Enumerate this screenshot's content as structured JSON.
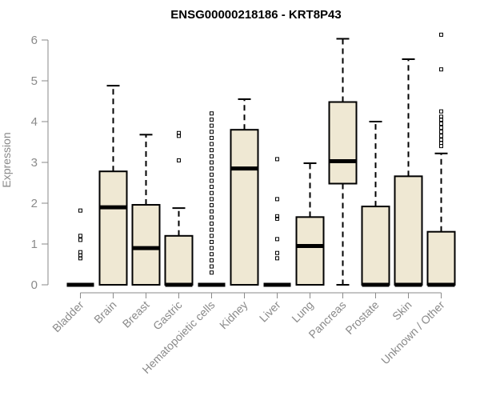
{
  "chart_data": {
    "type": "boxplot",
    "title": "ENSG00000218186 - KRT8P43",
    "xlabel": "",
    "ylabel": "Expression",
    "ylim": [
      0,
      6.2
    ],
    "yticks": [
      "0",
      "1",
      "2",
      "3",
      "4",
      "5",
      "6"
    ],
    "grid": false,
    "box_color": "#efe8d3",
    "categories": [
      "Bladder",
      "Brain",
      "Breast",
      "Gastric",
      "Hematopoietic cells",
      "Kidney",
      "Liver",
      "Lung",
      "Pancreas",
      "Prostate",
      "Skin",
      "Unknown / Other"
    ],
    "series": [
      {
        "name": "Bladder",
        "min": 0,
        "q1": 0,
        "median": 0,
        "q3": 0,
        "max": 0,
        "outliers": [
          0.65,
          0.72,
          0.8,
          1.1,
          1.2,
          1.82
        ]
      },
      {
        "name": "Brain",
        "min": 0,
        "q1": 0,
        "median": 1.9,
        "q3": 2.78,
        "max": 4.88,
        "outliers": []
      },
      {
        "name": "Breast",
        "min": 0,
        "q1": 0,
        "median": 0.9,
        "q3": 1.96,
        "max": 3.68,
        "outliers": []
      },
      {
        "name": "Gastric",
        "min": 0,
        "q1": 0,
        "median": 0,
        "q3": 1.2,
        "max": 1.88,
        "outliers": [
          3.05,
          3.65,
          3.72
        ]
      },
      {
        "name": "Hematopoietic cells",
        "min": 0,
        "q1": 0,
        "median": 0,
        "q3": 0,
        "max": 0,
        "outliers": [
          0.3,
          0.45,
          0.6,
          0.75,
          0.9,
          1.05,
          1.2,
          1.35,
          1.5,
          1.65,
          1.8,
          1.95,
          2.1,
          2.25,
          2.4,
          2.55,
          2.7,
          2.85,
          3.0,
          3.15,
          3.3,
          3.45,
          3.6,
          3.75,
          3.9,
          4.05,
          4.2
        ]
      },
      {
        "name": "Kidney",
        "min": 0,
        "q1": 0,
        "median": 2.85,
        "q3": 3.8,
        "max": 4.55,
        "outliers": []
      },
      {
        "name": "Liver",
        "min": 0,
        "q1": 0,
        "median": 0,
        "q3": 0,
        "max": 0,
        "outliers": [
          0.65,
          0.78,
          1.12,
          1.62,
          1.68,
          2.1,
          3.08
        ]
      },
      {
        "name": "Lung",
        "min": 0,
        "q1": 0,
        "median": 0.95,
        "q3": 1.66,
        "max": 2.98,
        "outliers": []
      },
      {
        "name": "Pancreas",
        "min": 0,
        "q1": 2.48,
        "median": 3.03,
        "q3": 4.48,
        "max": 6.03,
        "outliers": []
      },
      {
        "name": "Prostate",
        "min": 0,
        "q1": 0,
        "median": 0,
        "q3": 1.92,
        "max": 4.0,
        "outliers": []
      },
      {
        "name": "Skin",
        "min": 0,
        "q1": 0,
        "median": 0,
        "q3": 2.66,
        "max": 5.53,
        "outliers": []
      },
      {
        "name": "Unknown / Other",
        "min": 0,
        "q1": 0,
        "median": 0,
        "q3": 1.3,
        "max": 3.22,
        "outliers": [
          3.4,
          3.48,
          3.55,
          3.65,
          3.75,
          3.85,
          3.95,
          4.05,
          4.12,
          4.25,
          5.28,
          6.13
        ]
      }
    ]
  }
}
